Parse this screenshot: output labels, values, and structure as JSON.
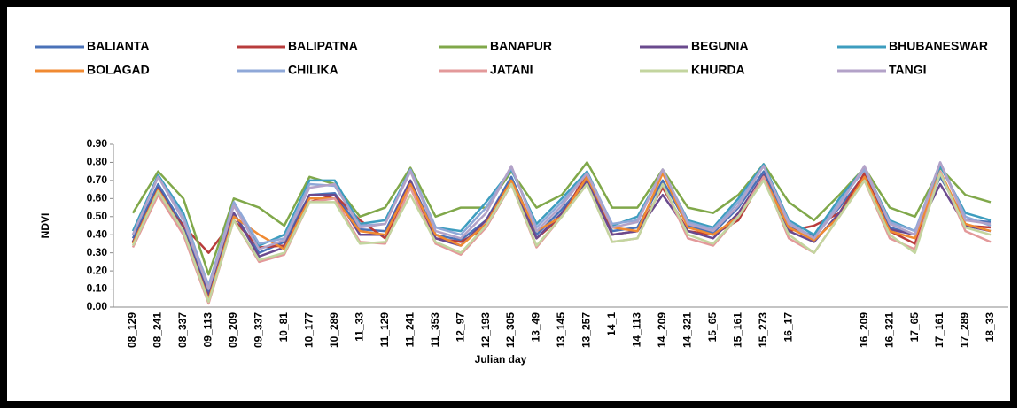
{
  "chart_data": {
    "type": "line",
    "y_label": "NDVI",
    "x_label": "Julian day",
    "categories": [
      "08_129",
      "08_241",
      "08_337",
      "09_113",
      "09_209",
      "09_337",
      "10_81",
      "10_177",
      "10_289",
      "11_33",
      "11_129",
      "11_241",
      "11_353",
      "12_97",
      "12_193",
      "12_305",
      "13_49",
      "13_145",
      "13_257",
      "14_1",
      "14_113",
      "14_209",
      "14_321",
      "15_65",
      "15_161",
      "15_273",
      "16_17",
      null,
      null,
      "16_209",
      "16_321",
      "17_65",
      "17_161",
      "17_289",
      "18_33"
    ],
    "ylim": [
      0,
      0.9
    ],
    "yticks": [
      {
        "value": 0,
        "label": "0.00"
      },
      {
        "value": 0.1,
        "label": "0.10"
      },
      {
        "value": 0.2,
        "label": "0.20"
      },
      {
        "value": 0.3,
        "label": "0.30"
      },
      {
        "value": 0.4,
        "label": "0.40"
      },
      {
        "value": 0.5,
        "label": "0.50"
      },
      {
        "value": 0.6,
        "label": "0.60"
      },
      {
        "value": 0.7,
        "label": "0.70"
      },
      {
        "value": 0.8,
        "label": "0.80"
      },
      {
        "value": 0.9,
        "label": "0.90"
      }
    ],
    "series": [
      {
        "name": "BALIANTA",
        "color": "#4a72b8",
        "values": [
          0.38,
          0.68,
          0.45,
          0.08,
          0.52,
          0.3,
          0.36,
          0.62,
          0.63,
          0.43,
          0.42,
          0.7,
          0.4,
          0.37,
          0.48,
          0.72,
          0.4,
          0.54,
          0.7,
          0.42,
          0.44,
          0.7,
          0.45,
          0.41,
          0.55,
          0.75,
          0.45,
          0.39,
          0.55,
          0.73,
          0.44,
          0.4,
          0.72,
          0.48,
          0.47
        ]
      },
      {
        "name": "BALIPATNA",
        "color": "#b83c3c",
        "values": [
          0.36,
          0.62,
          0.45,
          0.3,
          0.48,
          0.33,
          0.34,
          0.58,
          0.62,
          0.48,
          0.38,
          0.68,
          0.38,
          0.36,
          0.44,
          0.68,
          0.38,
          0.5,
          0.74,
          0.4,
          0.42,
          0.66,
          0.42,
          0.4,
          0.48,
          0.72,
          0.42,
          0.45,
          0.52,
          0.74,
          0.42,
          0.35,
          0.74,
          0.45,
          0.44
        ]
      },
      {
        "name": "BANAPUR",
        "color": "#80a84a",
        "values": [
          0.52,
          0.75,
          0.6,
          0.18,
          0.6,
          0.55,
          0.45,
          0.72,
          0.68,
          0.5,
          0.55,
          0.77,
          0.5,
          0.55,
          0.55,
          0.75,
          0.55,
          0.62,
          0.8,
          0.55,
          0.55,
          0.76,
          0.55,
          0.52,
          0.62,
          0.79,
          0.58,
          0.48,
          0.62,
          0.77,
          0.55,
          0.5,
          0.77,
          0.62,
          0.58
        ]
      },
      {
        "name": "BEGUNIA",
        "color": "#6a4a8e",
        "values": [
          0.36,
          0.66,
          0.43,
          0.06,
          0.52,
          0.28,
          0.33,
          0.62,
          0.62,
          0.4,
          0.4,
          0.7,
          0.38,
          0.34,
          0.48,
          0.7,
          0.38,
          0.52,
          0.7,
          0.4,
          0.42,
          0.62,
          0.42,
          0.38,
          0.52,
          0.73,
          0.42,
          0.36,
          0.52,
          0.7,
          0.43,
          0.4,
          0.68,
          0.45,
          0.42
        ]
      },
      {
        "name": "BHUBANESWAR",
        "color": "#3d9dbf",
        "values": [
          0.42,
          0.73,
          0.52,
          0.1,
          0.58,
          0.34,
          0.4,
          0.7,
          0.7,
          0.46,
          0.48,
          0.76,
          0.44,
          0.42,
          0.58,
          0.76,
          0.46,
          0.6,
          0.75,
          0.45,
          0.5,
          0.75,
          0.48,
          0.44,
          0.6,
          0.79,
          0.48,
          0.4,
          0.6,
          0.77,
          0.48,
          0.42,
          0.78,
          0.52,
          0.48
        ]
      },
      {
        "name": "BOLAGAD",
        "color": "#f08a32",
        "values": [
          0.35,
          0.65,
          0.42,
          0.04,
          0.5,
          0.4,
          0.32,
          0.6,
          0.6,
          0.42,
          0.4,
          0.68,
          0.4,
          0.34,
          0.46,
          0.7,
          0.42,
          0.5,
          0.72,
          0.44,
          0.42,
          0.74,
          0.44,
          0.4,
          0.5,
          0.72,
          0.44,
          0.37,
          0.5,
          0.72,
          0.42,
          0.38,
          0.75,
          0.46,
          0.42
        ]
      },
      {
        "name": "CHILIKA",
        "color": "#8fa8d8",
        "values": [
          0.4,
          0.72,
          0.5,
          0.12,
          0.58,
          0.35,
          0.38,
          0.68,
          0.67,
          0.45,
          0.46,
          0.76,
          0.44,
          0.4,
          0.55,
          0.77,
          0.44,
          0.58,
          0.74,
          0.46,
          0.48,
          0.76,
          0.47,
          0.43,
          0.58,
          0.78,
          0.47,
          0.38,
          0.58,
          0.76,
          0.47,
          0.42,
          0.8,
          0.5,
          0.45
        ]
      },
      {
        "name": "JATANI",
        "color": "#e3999a",
        "values": [
          0.33,
          0.62,
          0.4,
          0.02,
          0.48,
          0.25,
          0.29,
          0.58,
          0.6,
          0.36,
          0.35,
          0.66,
          0.35,
          0.29,
          0.44,
          0.68,
          0.33,
          0.5,
          0.68,
          0.36,
          0.38,
          0.68,
          0.38,
          0.34,
          0.5,
          0.72,
          0.38,
          0.3,
          0.5,
          0.7,
          0.38,
          0.32,
          0.75,
          0.42,
          0.36
        ]
      },
      {
        "name": "KHURDA",
        "color": "#c3d59f",
        "values": [
          0.34,
          0.64,
          0.42,
          0.03,
          0.48,
          0.26,
          0.3,
          0.58,
          0.58,
          0.35,
          0.36,
          0.62,
          0.36,
          0.3,
          0.45,
          0.68,
          0.34,
          0.5,
          0.68,
          0.36,
          0.38,
          0.68,
          0.4,
          0.35,
          0.5,
          0.7,
          0.4,
          0.3,
          0.5,
          0.7,
          0.4,
          0.3,
          0.74,
          0.44,
          0.4
        ]
      },
      {
        "name": "TANGI",
        "color": "#b3a2c8",
        "values": [
          0.4,
          0.72,
          0.48,
          0.1,
          0.56,
          0.32,
          0.37,
          0.66,
          0.68,
          0.44,
          0.46,
          0.75,
          0.42,
          0.38,
          0.52,
          0.78,
          0.42,
          0.56,
          0.74,
          0.44,
          0.47,
          0.76,
          0.46,
          0.42,
          0.56,
          0.78,
          0.46,
          0.38,
          0.56,
          0.78,
          0.46,
          0.4,
          0.8,
          0.48,
          0.46
        ]
      }
    ]
  }
}
